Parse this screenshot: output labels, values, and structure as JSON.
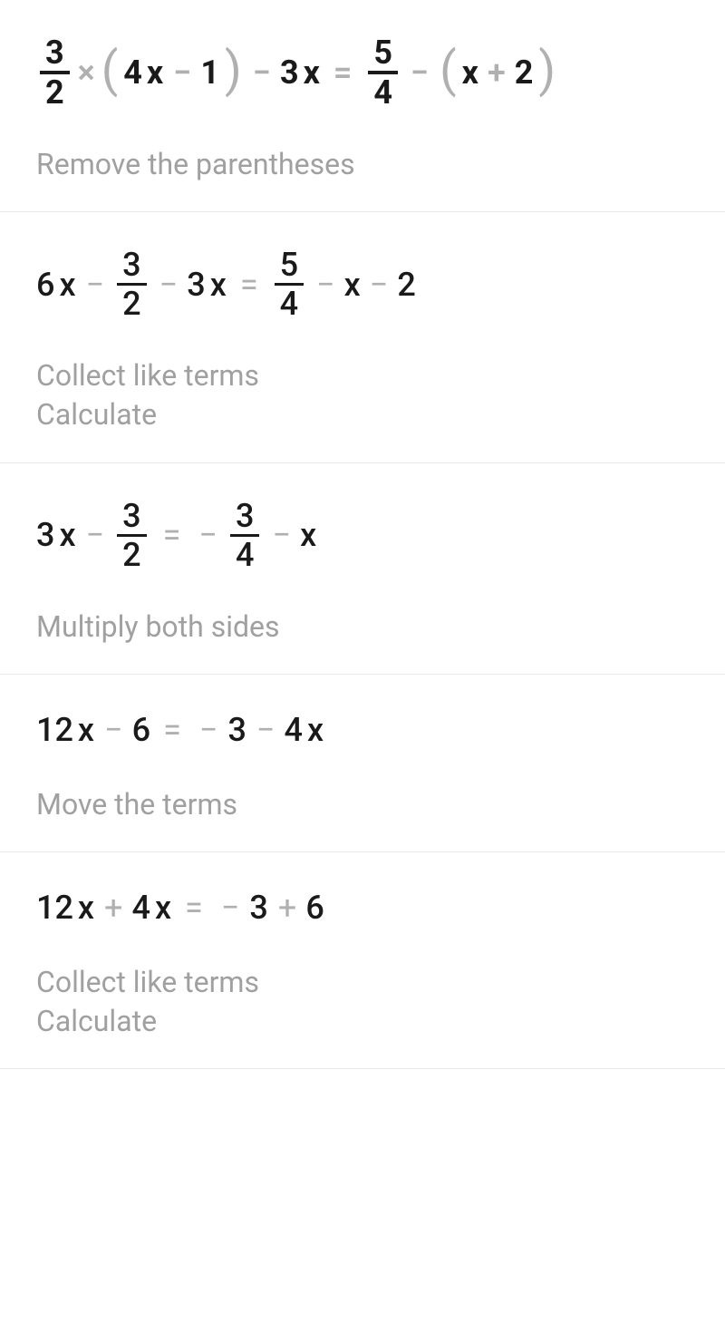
{
  "steps": [
    {
      "caption": "Remove the parentheses",
      "eq": {
        "lhs_frac1": {
          "num": "3",
          "den": "2"
        },
        "mult": "×",
        "paren1_a": "4",
        "paren1_x": "x",
        "paren1_op": "−",
        "paren1_b": "1",
        "op1": "−",
        "coef1": "3",
        "var1": "x",
        "rhs_frac1": {
          "num": "5",
          "den": "4"
        },
        "op2": "−",
        "paren2_x": "x",
        "paren2_op": "+",
        "paren2_b": "2"
      }
    },
    {
      "caption": "Collect like terms\nCalculate",
      "eq": {
        "t1": "6",
        "t1x": "x",
        "op1": "−",
        "frac1": {
          "num": "3",
          "den": "2"
        },
        "op2": "−",
        "t2": "3",
        "t2x": "x",
        "rfrac": {
          "num": "5",
          "den": "4"
        },
        "rop1": "−",
        "rvar": "x",
        "rop2": "−",
        "rt": "2"
      }
    },
    {
      "caption": "Multiply both sides",
      "eq": {
        "t1": "3",
        "t1x": "x",
        "op1": "−",
        "frac1": {
          "num": "3",
          "den": "2"
        },
        "neg": "−",
        "rfrac": {
          "num": "3",
          "den": "4"
        },
        "rop1": "−",
        "rvar": "x"
      }
    },
    {
      "caption": "Move the terms",
      "eq": {
        "t1": "12",
        "t1x": "x",
        "op1": "−",
        "t2": "6",
        "rneg": "−",
        "rt1": "3",
        "rop1": "−",
        "rt2": "4",
        "rt2x": "x"
      }
    },
    {
      "caption": "Collect like terms\nCalculate",
      "eq": {
        "t1": "12",
        "t1x": "x",
        "op1": "+",
        "t2": "4",
        "t2x": "x",
        "rneg": "−",
        "rt1": "3",
        "rop1": "+",
        "rt2": "6"
      }
    }
  ]
}
